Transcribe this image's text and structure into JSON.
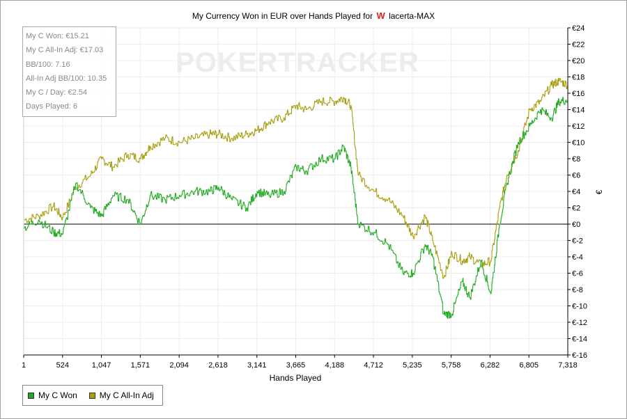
{
  "header": {
    "title_prefix": "My Currency Won in EUR over Hands Played for",
    "brand_icon": "W",
    "player": "lacerta-MAX"
  },
  "watermark": "POKERTRACKER",
  "stats": [
    "My C Won: €15.21",
    "My C All-In Adj: €17.03",
    "BB/100: 7.16",
    "All-In Adj BB/100: 10.35",
    "My C / Day: €2.54",
    "Days Played: 6"
  ],
  "legend": [
    {
      "label": "My C Won",
      "color": "#22aa22"
    },
    {
      "label": "My C All-In Adj",
      "color": "#a8a010"
    }
  ],
  "chart_data": {
    "type": "line",
    "title": "My Currency Won in EUR over Hands Played for lacerta-MAX",
    "xlabel": "Hands Played",
    "ylabel": "€",
    "xlim": [
      1,
      7318
    ],
    "ylim": [
      -16,
      24
    ],
    "x_ticks": [
      "1",
      "524",
      "1,047",
      "1,571",
      "2,094",
      "2,618",
      "3,141",
      "3,665",
      "4,188",
      "4,712",
      "5,235",
      "5,758",
      "6,282",
      "6,805",
      "7,318"
    ],
    "y_ticks": [
      "€24",
      "€22",
      "€20",
      "€18",
      "€16",
      "€14",
      "€12",
      "€10",
      "€8",
      "€6",
      "€4",
      "€2",
      "€0",
      "€-2",
      "€-4",
      "€-6",
      "€-8",
      "€-10",
      "€-12",
      "€-14",
      "€-16"
    ],
    "grid": true,
    "legend_position": "bottom-left",
    "series": [
      {
        "name": "My C Won",
        "color": "#22aa22",
        "x": [
          1,
          200,
          400,
          524,
          700,
          900,
          1047,
          1200,
          1400,
          1571,
          1700,
          1900,
          2094,
          2300,
          2500,
          2618,
          2800,
          3000,
          3141,
          3300,
          3500,
          3665,
          3800,
          4000,
          4188,
          4300,
          4400,
          4500,
          4712,
          4900,
          5100,
          5235,
          5400,
          5500,
          5650,
          5758,
          5900,
          6000,
          6150,
          6282,
          6400,
          6500,
          6650,
          6805,
          6950,
          7100,
          7200,
          7318
        ],
        "y": [
          -0.5,
          0.5,
          -1,
          -1.2,
          5,
          2,
          1,
          3.5,
          3,
          0,
          3.5,
          3,
          3.5,
          4,
          4,
          4.5,
          3,
          2,
          4,
          3.5,
          4,
          7,
          6.5,
          8,
          8,
          9.5,
          7,
          0,
          -1,
          -2.5,
          -6,
          -6,
          -2.5,
          -4,
          -11,
          -11,
          -7,
          -9,
          -4.5,
          -8.5,
          0,
          5,
          10,
          12,
          14,
          13,
          15,
          15.2
        ]
      },
      {
        "name": "My C All-In Adj",
        "color": "#a8a010",
        "x": [
          1,
          200,
          400,
          524,
          700,
          900,
          1047,
          1200,
          1400,
          1571,
          1700,
          1900,
          2094,
          2300,
          2500,
          2618,
          2800,
          3000,
          3141,
          3300,
          3500,
          3665,
          3800,
          4000,
          4188,
          4300,
          4400,
          4500,
          4712,
          4900,
          5100,
          5235,
          5400,
          5500,
          5650,
          5758,
          5900,
          6000,
          6150,
          6282,
          6400,
          6500,
          6650,
          6805,
          6950,
          7100,
          7200,
          7318
        ],
        "y": [
          0.5,
          1,
          2.2,
          0.8,
          4.5,
          6,
          8,
          7,
          8.5,
          8,
          9.5,
          10.5,
          10,
          10.5,
          11,
          11,
          10.5,
          11,
          11.5,
          12.5,
          13,
          14.5,
          14,
          15,
          15,
          15.5,
          14.5,
          6,
          4,
          3,
          1,
          -1.5,
          1,
          -2,
          -6.5,
          -3.5,
          -4.5,
          -4,
          -5,
          -4.5,
          2,
          6,
          9,
          14,
          15,
          17,
          17.5,
          17.03
        ]
      }
    ]
  }
}
